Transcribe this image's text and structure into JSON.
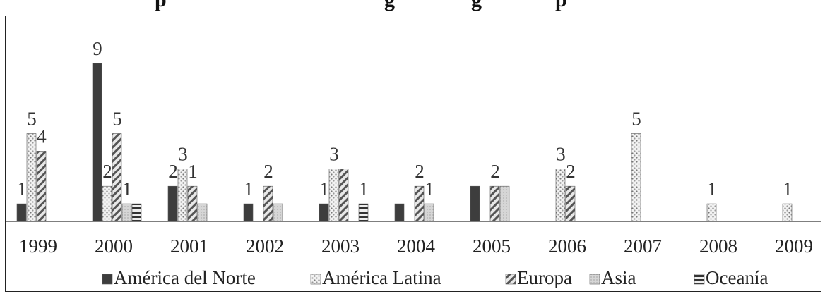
{
  "chart_data": {
    "type": "bar",
    "title": "p",
    "title_fragments": [
      "g",
      "g",
      "p"
    ],
    "categories": [
      "1999",
      "2000",
      "2001",
      "2002",
      "2003",
      "2004",
      "2005",
      "2006",
      "2007",
      "2008",
      "2009"
    ],
    "series": [
      {
        "name": "América del Norte",
        "values": [
          1,
          9,
          2,
          1,
          1,
          1,
          2,
          0,
          0,
          0,
          0
        ]
      },
      {
        "name": "América Latina",
        "values": [
          5,
          2,
          3,
          0,
          3,
          0,
          0,
          3,
          5,
          1,
          1
        ]
      },
      {
        "name": "Europa",
        "values": [
          4,
          5,
          2,
          2,
          3,
          2,
          2,
          2,
          0,
          0,
          0
        ]
      },
      {
        "name": "Asia",
        "values": [
          0,
          1,
          1,
          1,
          0,
          1,
          2,
          0,
          0,
          0,
          0
        ]
      },
      {
        "name": "Oceanía",
        "values": [
          0,
          1,
          0,
          0,
          1,
          0,
          0,
          0,
          0,
          0,
          0
        ]
      }
    ],
    "data_labels": [
      {
        "category": "1999",
        "text": "1"
      },
      {
        "category": "1999",
        "text": "5"
      },
      {
        "category": "1999",
        "text": "4"
      },
      {
        "category": "2000",
        "text": "9"
      },
      {
        "category": "2000",
        "text": "2"
      },
      {
        "category": "2000",
        "text": "5"
      },
      {
        "category": "2000",
        "text": "1"
      },
      {
        "category": "2001",
        "text": "2"
      },
      {
        "category": "2001",
        "text": "3"
      },
      {
        "category": "2001",
        "text": "1"
      },
      {
        "category": "2002",
        "text": "1"
      },
      {
        "category": "2002",
        "text": "2"
      },
      {
        "category": "2003",
        "text": "1"
      },
      {
        "category": "2003",
        "text": "3"
      },
      {
        "category": "2003",
        "text": "1"
      },
      {
        "category": "2004",
        "text": "2"
      },
      {
        "category": "2004",
        "text": "1"
      },
      {
        "category": "2005",
        "text": "2"
      },
      {
        "category": "2006",
        "text": "3"
      },
      {
        "category": "2006",
        "text": "2"
      },
      {
        "category": "2007",
        "text": "5"
      },
      {
        "category": "2008",
        "text": "1"
      },
      {
        "category": "2009",
        "text": "1"
      }
    ],
    "ylim": [
      0,
      9
    ],
    "xlabel": "",
    "ylabel": "",
    "grid": false,
    "legend_position": "bottom",
    "colors": [
      "#3d3d3d",
      "#d9d9d9",
      "#bdbdbd",
      "#cfcfcf",
      "#4a4a4a"
    ],
    "patterns": [
      "solid",
      "dots",
      "diagonal",
      "light",
      "horizontal"
    ]
  }
}
